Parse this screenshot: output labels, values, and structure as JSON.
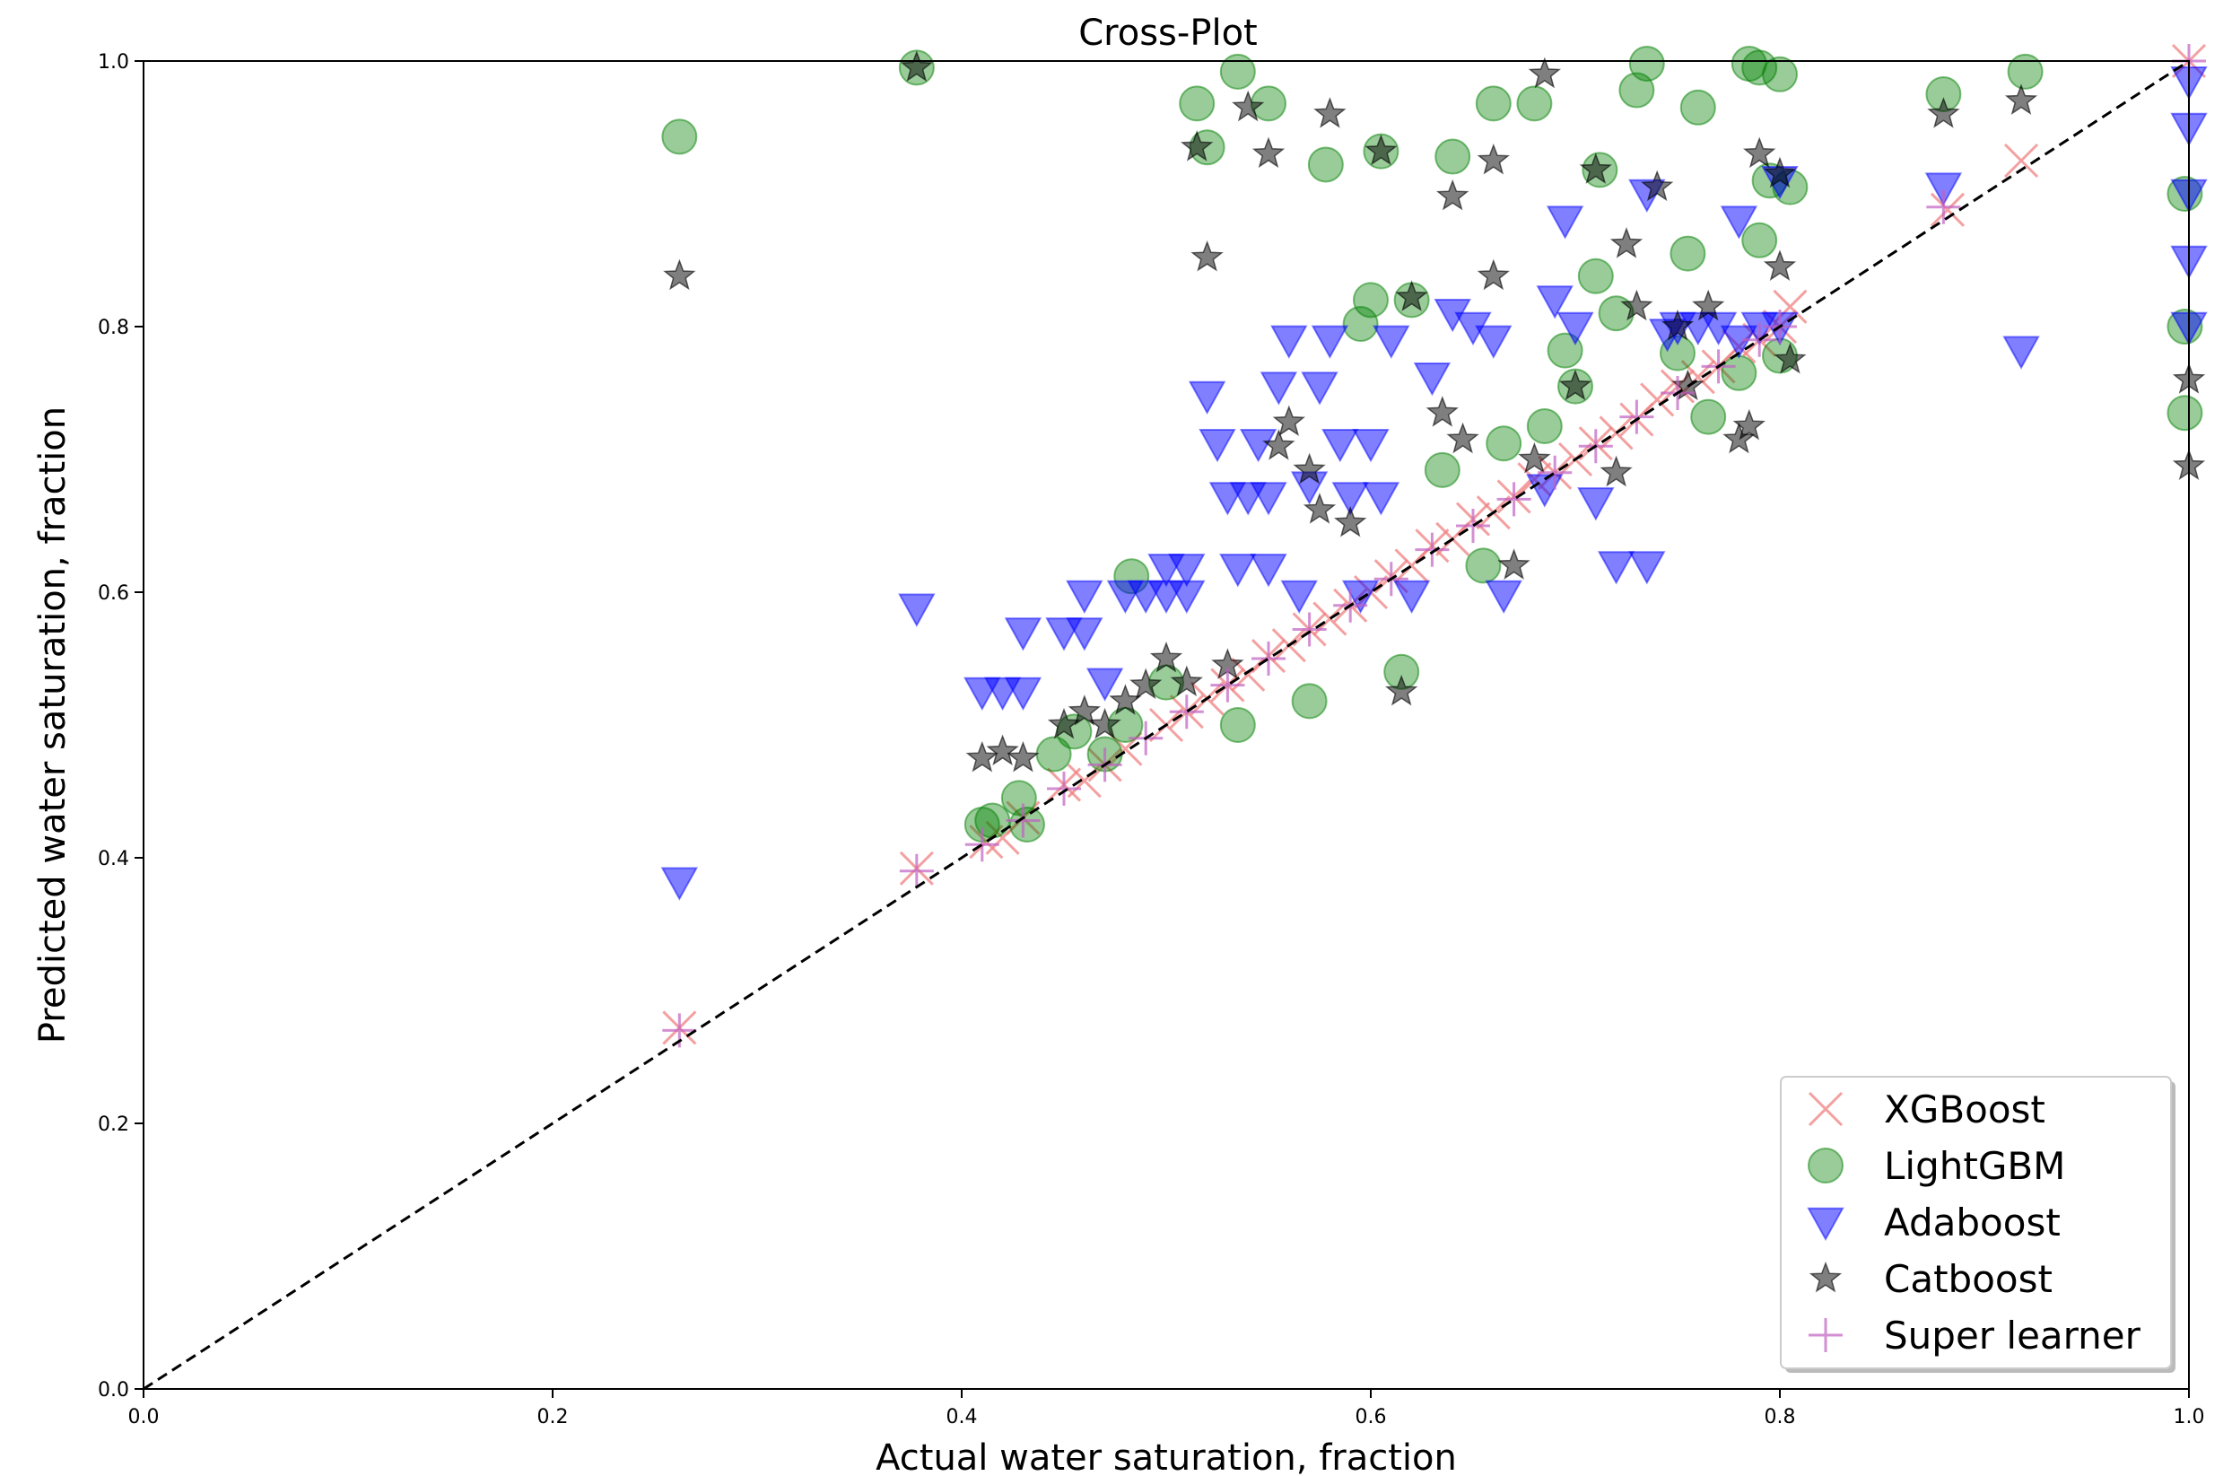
{
  "chart_data": {
    "type": "scatter",
    "title": "Cross-Plot",
    "xlabel": "Actual water saturation, fraction",
    "ylabel": "Predicted water saturation, fraction",
    "xlim": [
      0.0,
      1.0
    ],
    "ylim": [
      0.0,
      1.0
    ],
    "xticks": [
      "0.0",
      "0.2",
      "0.4",
      "0.6",
      "0.8",
      "1.0"
    ],
    "yticks": [
      "0.0",
      "0.2",
      "0.4",
      "0.6",
      "0.8",
      "1.0"
    ],
    "grid": false,
    "legend_position": "bottom-right",
    "reference_line": {
      "style": "dashed",
      "color": "#000000",
      "from": [
        0.0,
        0.0
      ],
      "to": [
        1.0,
        1.0
      ]
    },
    "series": [
      {
        "name": "XGBoost",
        "marker": "x",
        "color": "#f08080",
        "points": [
          [
            0.262,
            0.272
          ],
          [
            0.378,
            0.392
          ],
          [
            0.412,
            0.412
          ],
          [
            0.42,
            0.415
          ],
          [
            0.43,
            0.43
          ],
          [
            0.45,
            0.455
          ],
          [
            0.46,
            0.458
          ],
          [
            0.47,
            0.47
          ],
          [
            0.48,
            0.482
          ],
          [
            0.5,
            0.5
          ],
          [
            0.51,
            0.51
          ],
          [
            0.52,
            0.52
          ],
          [
            0.53,
            0.53
          ],
          [
            0.54,
            0.538
          ],
          [
            0.55,
            0.552
          ],
          [
            0.56,
            0.56
          ],
          [
            0.57,
            0.572
          ],
          [
            0.58,
            0.58
          ],
          [
            0.59,
            0.59
          ],
          [
            0.6,
            0.6
          ],
          [
            0.61,
            0.612
          ],
          [
            0.62,
            0.62
          ],
          [
            0.63,
            0.635
          ],
          [
            0.64,
            0.64
          ],
          [
            0.65,
            0.655
          ],
          [
            0.66,
            0.66
          ],
          [
            0.67,
            0.672
          ],
          [
            0.68,
            0.685
          ],
          [
            0.69,
            0.69
          ],
          [
            0.7,
            0.7
          ],
          [
            0.71,
            0.712
          ],
          [
            0.72,
            0.72
          ],
          [
            0.73,
            0.73
          ],
          [
            0.74,
            0.745
          ],
          [
            0.75,
            0.755
          ],
          [
            0.76,
            0.762
          ],
          [
            0.77,
            0.77
          ],
          [
            0.78,
            0.785
          ],
          [
            0.79,
            0.79
          ],
          [
            0.8,
            0.8
          ],
          [
            0.805,
            0.815
          ],
          [
            0.882,
            0.888
          ],
          [
            0.918,
            0.925
          ],
          [
            1.0,
            1.0
          ]
        ]
      },
      {
        "name": "LightGBM",
        "marker": "circle",
        "color": "#008000",
        "points": [
          [
            0.262,
            0.943
          ],
          [
            0.378,
            0.995
          ],
          [
            0.41,
            0.425
          ],
          [
            0.415,
            0.428
          ],
          [
            0.428,
            0.445
          ],
          [
            0.432,
            0.425
          ],
          [
            0.445,
            0.478
          ],
          [
            0.455,
            0.495
          ],
          [
            0.47,
            0.478
          ],
          [
            0.48,
            0.5
          ],
          [
            0.483,
            0.612
          ],
          [
            0.5,
            0.532
          ],
          [
            0.52,
            0.935
          ],
          [
            0.515,
            0.968
          ],
          [
            0.535,
            0.5
          ],
          [
            0.535,
            0.992
          ],
          [
            0.55,
            0.968
          ],
          [
            0.57,
            0.518
          ],
          [
            0.578,
            0.922
          ],
          [
            0.595,
            0.802
          ],
          [
            0.6,
            0.82
          ],
          [
            0.605,
            0.932
          ],
          [
            0.62,
            0.82
          ],
          [
            0.615,
            0.54
          ],
          [
            0.635,
            0.692
          ],
          [
            0.64,
            0.928
          ],
          [
            0.655,
            0.62
          ],
          [
            0.66,
            0.968
          ],
          [
            0.665,
            0.712
          ],
          [
            0.68,
            0.968
          ],
          [
            0.685,
            0.725
          ],
          [
            0.695,
            0.782
          ],
          [
            0.7,
            0.755
          ],
          [
            0.71,
            0.838
          ],
          [
            0.712,
            0.918
          ],
          [
            0.72,
            0.81
          ],
          [
            0.73,
            0.978
          ],
          [
            0.735,
            0.998
          ],
          [
            0.75,
            0.78
          ],
          [
            0.755,
            0.855
          ],
          [
            0.76,
            0.965
          ],
          [
            0.765,
            0.732
          ],
          [
            0.78,
            0.765
          ],
          [
            0.785,
            0.998
          ],
          [
            0.79,
            0.995
          ],
          [
            0.795,
            0.91
          ],
          [
            0.8,
            0.99
          ],
          [
            0.805,
            0.905
          ],
          [
            0.8,
            0.778
          ],
          [
            0.79,
            0.865
          ],
          [
            0.88,
            0.975
          ],
          [
            0.92,
            0.992
          ],
          [
            0.998,
            0.735
          ],
          [
            0.998,
            0.8
          ],
          [
            0.998,
            0.9
          ]
        ]
      },
      {
        "name": "Adaboost",
        "marker": "triangle-down",
        "color": "#0000ff",
        "points": [
          [
            0.262,
            0.382
          ],
          [
            0.378,
            0.588
          ],
          [
            0.41,
            0.525
          ],
          [
            0.42,
            0.525
          ],
          [
            0.43,
            0.525
          ],
          [
            0.43,
            0.57
          ],
          [
            0.45,
            0.57
          ],
          [
            0.46,
            0.57
          ],
          [
            0.46,
            0.598
          ],
          [
            0.47,
            0.532
          ],
          [
            0.48,
            0.598
          ],
          [
            0.49,
            0.598
          ],
          [
            0.5,
            0.598
          ],
          [
            0.5,
            0.618
          ],
          [
            0.51,
            0.618
          ],
          [
            0.51,
            0.598
          ],
          [
            0.52,
            0.748
          ],
          [
            0.525,
            0.712
          ],
          [
            0.53,
            0.672
          ],
          [
            0.535,
            0.618
          ],
          [
            0.54,
            0.672
          ],
          [
            0.545,
            0.712
          ],
          [
            0.55,
            0.672
          ],
          [
            0.55,
            0.618
          ],
          [
            0.555,
            0.755
          ],
          [
            0.56,
            0.79
          ],
          [
            0.565,
            0.598
          ],
          [
            0.57,
            0.68
          ],
          [
            0.575,
            0.755
          ],
          [
            0.58,
            0.79
          ],
          [
            0.585,
            0.712
          ],
          [
            0.59,
            0.672
          ],
          [
            0.595,
            0.598
          ],
          [
            0.6,
            0.712
          ],
          [
            0.605,
            0.672
          ],
          [
            0.61,
            0.79
          ],
          [
            0.62,
            0.598
          ],
          [
            0.63,
            0.762
          ],
          [
            0.64,
            0.81
          ],
          [
            0.65,
            0.8
          ],
          [
            0.66,
            0.79
          ],
          [
            0.665,
            0.598
          ],
          [
            0.685,
            0.678
          ],
          [
            0.69,
            0.82
          ],
          [
            0.7,
            0.8
          ],
          [
            0.71,
            0.668
          ],
          [
            0.72,
            0.62
          ],
          [
            0.735,
            0.62
          ],
          [
            0.745,
            0.795
          ],
          [
            0.75,
            0.8
          ],
          [
            0.76,
            0.8
          ],
          [
            0.77,
            0.8
          ],
          [
            0.78,
            0.79
          ],
          [
            0.79,
            0.8
          ],
          [
            0.8,
            0.8
          ],
          [
            0.695,
            0.88
          ],
          [
            0.735,
            0.9
          ],
          [
            0.78,
            0.88
          ],
          [
            0.8,
            0.91
          ],
          [
            0.88,
            0.905
          ],
          [
            0.918,
            0.782
          ],
          [
            1.0,
            0.985
          ],
          [
            1.0,
            0.95
          ],
          [
            1.0,
            0.9
          ],
          [
            1.0,
            0.85
          ],
          [
            1.0,
            0.8
          ]
        ]
      },
      {
        "name": "Catboost",
        "marker": "star",
        "color": "#000000",
        "points": [
          [
            0.262,
            0.838
          ],
          [
            0.378,
            0.995
          ],
          [
            0.41,
            0.475
          ],
          [
            0.42,
            0.48
          ],
          [
            0.43,
            0.475
          ],
          [
            0.45,
            0.5
          ],
          [
            0.46,
            0.51
          ],
          [
            0.47,
            0.5
          ],
          [
            0.48,
            0.518
          ],
          [
            0.49,
            0.53
          ],
          [
            0.5,
            0.55
          ],
          [
            0.51,
            0.532
          ],
          [
            0.515,
            0.935
          ],
          [
            0.52,
            0.852
          ],
          [
            0.53,
            0.545
          ],
          [
            0.54,
            0.965
          ],
          [
            0.55,
            0.93
          ],
          [
            0.555,
            0.71
          ],
          [
            0.56,
            0.728
          ],
          [
            0.57,
            0.692
          ],
          [
            0.575,
            0.662
          ],
          [
            0.58,
            0.96
          ],
          [
            0.59,
            0.652
          ],
          [
            0.605,
            0.932
          ],
          [
            0.615,
            0.525
          ],
          [
            0.62,
            0.822
          ],
          [
            0.635,
            0.735
          ],
          [
            0.64,
            0.898
          ],
          [
            0.645,
            0.715
          ],
          [
            0.66,
            0.925
          ],
          [
            0.66,
            0.838
          ],
          [
            0.67,
            0.62
          ],
          [
            0.68,
            0.7
          ],
          [
            0.685,
            0.99
          ],
          [
            0.7,
            0.755
          ],
          [
            0.71,
            0.918
          ],
          [
            0.72,
            0.69
          ],
          [
            0.725,
            0.862
          ],
          [
            0.73,
            0.815
          ],
          [
            0.74,
            0.905
          ],
          [
            0.75,
            0.8
          ],
          [
            0.755,
            0.755
          ],
          [
            0.765,
            0.815
          ],
          [
            0.78,
            0.715
          ],
          [
            0.785,
            0.725
          ],
          [
            0.79,
            0.93
          ],
          [
            0.8,
            0.915
          ],
          [
            0.8,
            0.845
          ],
          [
            0.805,
            0.775
          ],
          [
            0.88,
            0.96
          ],
          [
            0.918,
            0.97
          ],
          [
            1.0,
            0.695
          ],
          [
            1.0,
            0.76
          ]
        ]
      },
      {
        "name": "Super learner",
        "marker": "plus",
        "color": "#c060c0",
        "points": [
          [
            0.262,
            0.27
          ],
          [
            0.378,
            0.39
          ],
          [
            0.41,
            0.41
          ],
          [
            0.43,
            0.428
          ],
          [
            0.45,
            0.452
          ],
          [
            0.47,
            0.47
          ],
          [
            0.49,
            0.49
          ],
          [
            0.51,
            0.51
          ],
          [
            0.53,
            0.53
          ],
          [
            0.55,
            0.55
          ],
          [
            0.57,
            0.572
          ],
          [
            0.59,
            0.59
          ],
          [
            0.61,
            0.61
          ],
          [
            0.63,
            0.632
          ],
          [
            0.65,
            0.65
          ],
          [
            0.67,
            0.67
          ],
          [
            0.69,
            0.69
          ],
          [
            0.71,
            0.71
          ],
          [
            0.73,
            0.732
          ],
          [
            0.75,
            0.75
          ],
          [
            0.77,
            0.77
          ],
          [
            0.79,
            0.79
          ],
          [
            0.8,
            0.8
          ],
          [
            0.88,
            0.89
          ],
          [
            1.0,
            1.0
          ]
        ]
      }
    ]
  }
}
